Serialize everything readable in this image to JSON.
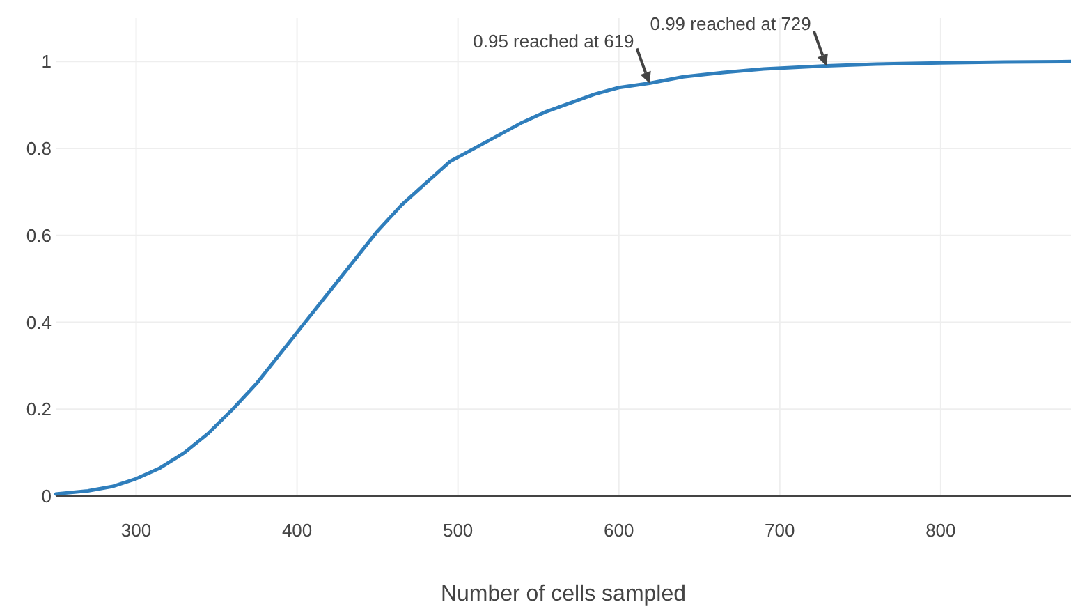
{
  "chart_data": {
    "type": "line",
    "xlabel": "Number of cells sampled",
    "x": [
      250,
      270,
      285,
      300,
      315,
      330,
      345,
      360,
      375,
      390,
      405,
      420,
      435,
      450,
      465,
      480,
      495,
      510,
      525,
      540,
      555,
      570,
      585,
      600,
      619,
      640,
      665,
      690,
      729,
      760,
      800,
      840,
      881
    ],
    "series": [
      {
        "color": "#2f7ebc",
        "values": [
          0.005,
          0.012,
          0.022,
          0.04,
          0.065,
          0.1,
          0.145,
          0.2,
          0.26,
          0.33,
          0.4,
          0.47,
          0.54,
          0.61,
          0.67,
          0.72,
          0.77,
          0.8,
          0.83,
          0.86,
          0.885,
          0.905,
          0.925,
          0.94,
          0.95,
          0.965,
          0.975,
          0.983,
          0.99,
          0.994,
          0.997,
          0.999,
          1
        ]
      }
    ],
    "xlim": [
      250,
      881
    ],
    "ylim": [
      0,
      1.1
    ],
    "xticks": [
      300,
      400,
      500,
      600,
      700,
      800
    ],
    "yticks": [
      0,
      0.2,
      0.4,
      0.6,
      0.8,
      1
    ],
    "grid": true,
    "marker": "none",
    "line_style": "solid",
    "annotations": [
      {
        "text": "0.95 reached at 619",
        "x": 619,
        "y": 0.95
      },
      {
        "text": "0.99 reached at 729",
        "x": 729,
        "y": 0.99
      }
    ]
  }
}
